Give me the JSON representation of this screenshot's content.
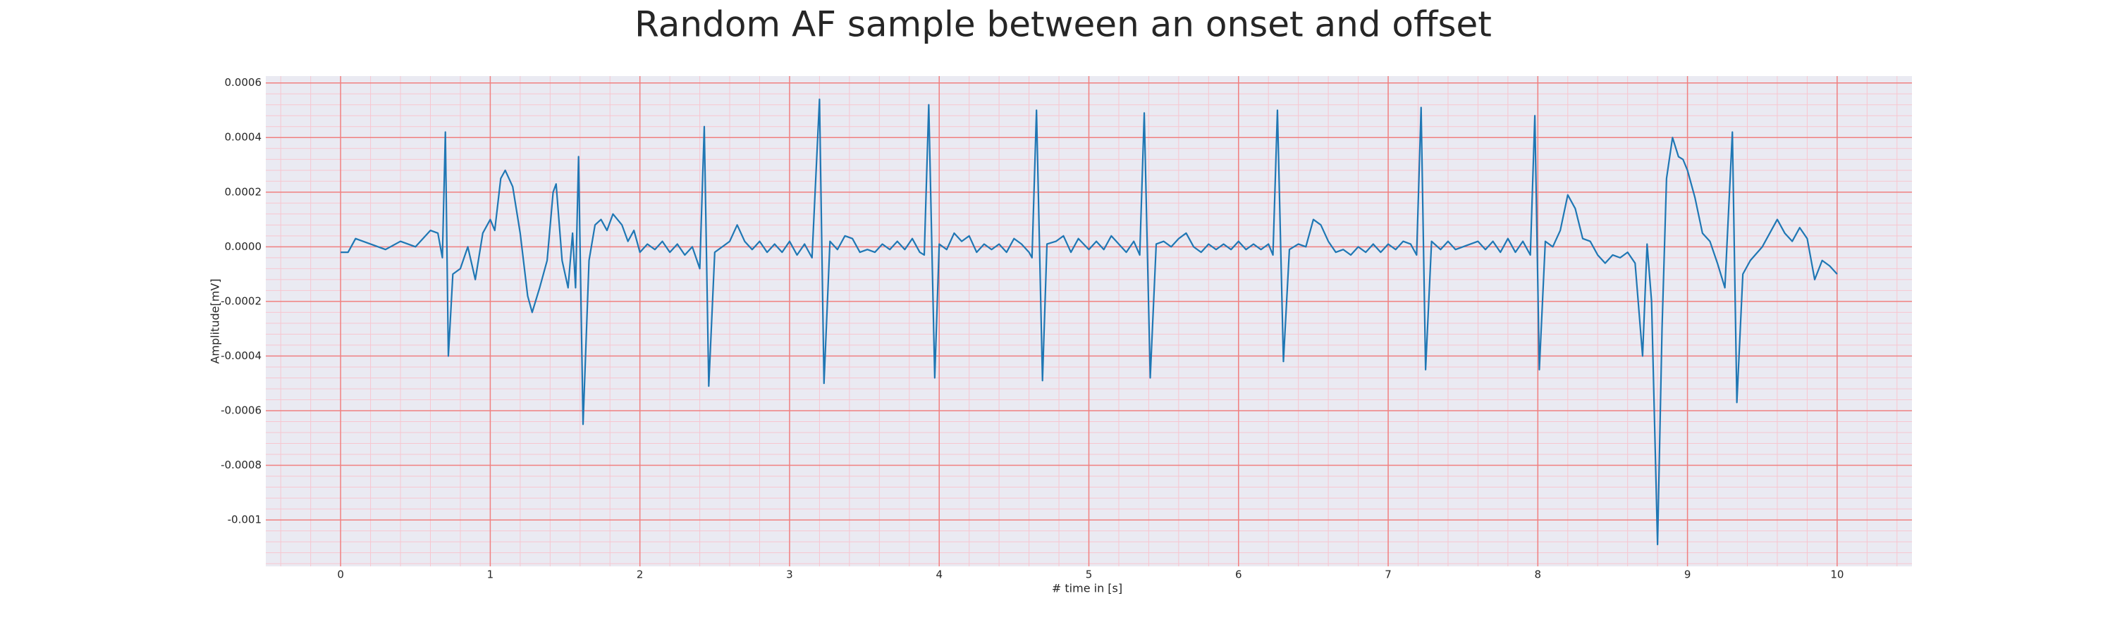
{
  "chart_data": {
    "type": "line",
    "title": "Random AF sample between an onset and offset",
    "xlabel": "# time in [s]",
    "ylabel": "Amplitude[mV]",
    "xlim": [
      -0.5,
      10.5
    ],
    "ylim": [
      -0.00117,
      0.000625
    ],
    "xticks": [
      0,
      1,
      2,
      3,
      4,
      5,
      6,
      7,
      8,
      9,
      10
    ],
    "yticks": [
      -0.001,
      -0.0008,
      -0.0006,
      -0.0004,
      -0.0002,
      {
        "value": 0,
        "label": "0.0000"
      },
      0.0002,
      0.0004,
      0.0006
    ],
    "grid": true,
    "grid_color": "#f08080",
    "minor_grid": true,
    "minor_grid_color": "#f7c6d0",
    "background": "#eaeaf2",
    "xminorticks": [
      -0.4,
      -0.2,
      0.2,
      0.4,
      0.6,
      0.8,
      1.2,
      1.4,
      1.6,
      1.8,
      2.2,
      2.4,
      2.6,
      2.8,
      3.2,
      3.4,
      3.6,
      3.8,
      4.2,
      4.4,
      4.6,
      4.8,
      5.2,
      5.4,
      5.6,
      5.8,
      6.2,
      6.4,
      6.6,
      6.8,
      7.2,
      7.4,
      7.6,
      7.8,
      8.2,
      8.4,
      8.6,
      8.8,
      9.2,
      9.4,
      9.6,
      9.8,
      10.2,
      10.4
    ],
    "yminorticks": [
      -0.00116,
      -0.00112,
      -0.00108,
      -0.00104,
      -0.00096,
      -0.00092,
      -0.00088,
      -0.00084,
      -0.00076,
      -0.00072,
      -0.00068,
      -0.00064,
      -0.00056,
      -0.00052,
      -0.00048,
      -0.00044,
      -0.00036,
      -0.00032,
      -0.00028,
      -0.00024,
      -0.00016,
      -0.00012,
      -8e-05,
      -4e-05,
      4e-05,
      8e-05,
      0.00012,
      0.00016,
      0.00024,
      0.00028,
      0.00032,
      0.00036,
      0.00044,
      0.00048,
      0.00052,
      0.00056
    ],
    "series": [
      {
        "color": "#1f77b4",
        "x": [
          0,
          0.05,
          0.1,
          0.2,
          0.3,
          0.4,
          0.5,
          0.6,
          0.65,
          0.68,
          0.7,
          0.72,
          0.75,
          0.8,
          0.85,
          0.9,
          0.95,
          1.0,
          1.03,
          1.07,
          1.1,
          1.15,
          1.2,
          1.25,
          1.28,
          1.33,
          1.38,
          1.42,
          1.44,
          1.48,
          1.52,
          1.55,
          1.57,
          1.59,
          1.62,
          1.66,
          1.7,
          1.74,
          1.78,
          1.82,
          1.88,
          1.92,
          1.96,
          2.0,
          2.05,
          2.1,
          2.15,
          2.2,
          2.25,
          2.3,
          2.35,
          2.4,
          2.43,
          2.46,
          2.5,
          2.55,
          2.6,
          2.65,
          2.7,
          2.75,
          2.8,
          2.85,
          2.9,
          2.95,
          3.0,
          3.05,
          3.1,
          3.15,
          3.2,
          3.23,
          3.27,
          3.32,
          3.37,
          3.42,
          3.47,
          3.52,
          3.57,
          3.62,
          3.67,
          3.72,
          3.77,
          3.82,
          3.87,
          3.9,
          3.93,
          3.97,
          4.0,
          4.05,
          4.1,
          4.15,
          4.2,
          4.25,
          4.3,
          4.35,
          4.4,
          4.45,
          4.5,
          4.55,
          4.6,
          4.62,
          4.65,
          4.69,
          4.72,
          4.78,
          4.83,
          4.88,
          4.93,
          5.0,
          5.05,
          5.1,
          5.15,
          5.2,
          5.25,
          5.3,
          5.34,
          5.37,
          5.41,
          5.45,
          5.5,
          5.55,
          5.6,
          5.65,
          5.7,
          5.75,
          5.8,
          5.85,
          5.9,
          5.95,
          6.0,
          6.05,
          6.1,
          6.15,
          6.2,
          6.23,
          6.26,
          6.3,
          6.34,
          6.4,
          6.45,
          6.5,
          6.55,
          6.6,
          6.65,
          6.7,
          6.75,
          6.8,
          6.85,
          6.9,
          6.95,
          7.0,
          7.05,
          7.1,
          7.15,
          7.19,
          7.22,
          7.25,
          7.29,
          7.35,
          7.4,
          7.45,
          7.5,
          7.55,
          7.6,
          7.65,
          7.7,
          7.75,
          7.8,
          7.85,
          7.9,
          7.95,
          7.98,
          8.01,
          8.05,
          8.1,
          8.15,
          8.2,
          8.25,
          8.3,
          8.35,
          8.4,
          8.45,
          8.5,
          8.55,
          8.6,
          8.65,
          8.7,
          8.73,
          8.76,
          8.8,
          8.83,
          8.86,
          8.9,
          8.94,
          8.97,
          9.0,
          9.05,
          9.1,
          9.15,
          9.2,
          9.25,
          9.3,
          9.33,
          9.37,
          9.42,
          9.5,
          9.55,
          9.6,
          9.65,
          9.7,
          9.75,
          9.8,
          9.85,
          9.9,
          9.95,
          10.0
        ],
        "values": [
          -2e-05,
          -2e-05,
          3e-05,
          1e-05,
          -1e-05,
          2e-05,
          0.0,
          6e-05,
          5e-05,
          -4e-05,
          0.00042,
          -0.0004,
          -0.0001,
          -8e-05,
          0.0,
          -0.00012,
          5e-05,
          0.0001,
          6e-05,
          0.00025,
          0.00028,
          0.00022,
          5e-05,
          -0.00018,
          -0.00024,
          -0.00015,
          -5e-05,
          0.0002,
          0.00023,
          -5e-05,
          -0.00015,
          5e-05,
          -0.00015,
          0.00033,
          -0.00065,
          -5e-05,
          8e-05,
          0.0001,
          6e-05,
          0.00012,
          8e-05,
          2e-05,
          6e-05,
          -2e-05,
          1e-05,
          -1e-05,
          2e-05,
          -2e-05,
          1e-05,
          -3e-05,
          0.0,
          -8e-05,
          0.00044,
          -0.00051,
          -2e-05,
          0.0,
          2e-05,
          8e-05,
          2e-05,
          -1e-05,
          2e-05,
          -2e-05,
          1e-05,
          -2e-05,
          2e-05,
          -3e-05,
          1e-05,
          -4e-05,
          0.00054,
          -0.0005,
          2e-05,
          -1e-05,
          4e-05,
          3e-05,
          -2e-05,
          -1e-05,
          -2e-05,
          1e-05,
          -1e-05,
          2e-05,
          -1e-05,
          3e-05,
          -2e-05,
          -3e-05,
          0.00052,
          -0.00048,
          1e-05,
          -1e-05,
          5e-05,
          2e-05,
          4e-05,
          -2e-05,
          1e-05,
          -1e-05,
          1e-05,
          -2e-05,
          3e-05,
          1e-05,
          -2e-05,
          -4e-05,
          0.0005,
          -0.00049,
          1e-05,
          2e-05,
          4e-05,
          -2e-05,
          3e-05,
          -1e-05,
          2e-05,
          -1e-05,
          4e-05,
          1e-05,
          -2e-05,
          2e-05,
          -3e-05,
          0.00049,
          -0.00048,
          1e-05,
          2e-05,
          0.0,
          3e-05,
          5e-05,
          0.0,
          -2e-05,
          1e-05,
          -1e-05,
          1e-05,
          -1e-05,
          2e-05,
          -1e-05,
          1e-05,
          -1e-05,
          1e-05,
          -3e-05,
          0.0005,
          -0.00042,
          -1e-05,
          1e-05,
          0.0,
          0.0001,
          8e-05,
          2e-05,
          -2e-05,
          -1e-05,
          -3e-05,
          0.0,
          -2e-05,
          1e-05,
          -2e-05,
          1e-05,
          -1e-05,
          2e-05,
          1e-05,
          -3e-05,
          0.00051,
          -0.00045,
          2e-05,
          -1e-05,
          2e-05,
          -1e-05,
          0.0,
          1e-05,
          2e-05,
          -1e-05,
          2e-05,
          -2e-05,
          3e-05,
          -2e-05,
          2e-05,
          -3e-05,
          0.00048,
          -0.00045,
          2e-05,
          0.0,
          6e-05,
          0.00019,
          0.00014,
          3e-05,
          2e-05,
          -3e-05,
          -6e-05,
          -3e-05,
          -4e-05,
          -2e-05,
          -6e-05,
          -0.0004,
          1e-05,
          -0.0002,
          -0.00109,
          -0.0003,
          0.00025,
          0.0004,
          0.00033,
          0.00032,
          0.00028,
          0.00018,
          5e-05,
          2e-05,
          -6e-05,
          -0.00015,
          0.00042,
          -0.00057,
          -0.0001,
          -5e-05,
          0.0,
          5e-05,
          0.0001,
          5e-05,
          2e-05,
          7e-05,
          3e-05,
          -0.00012,
          -5e-05,
          -7e-05,
          -0.0001
        ]
      }
    ]
  }
}
